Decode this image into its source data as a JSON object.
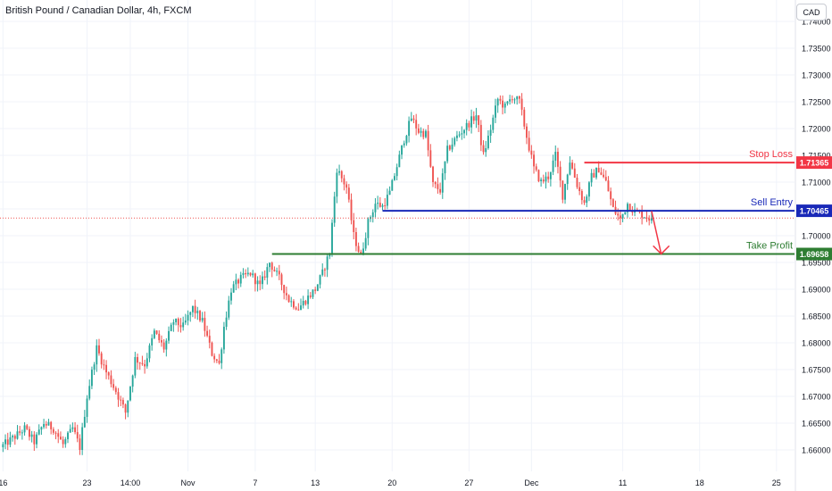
{
  "header": {
    "title": "British Pound / Canadian Dollar, 4h, FXCM"
  },
  "currency_button": "CAD",
  "colors": {
    "up": "#26a69a",
    "down": "#ef5350",
    "stop_loss": "#f23645",
    "sell_entry": "#1929b8",
    "take_profit": "#2e7d32",
    "current_price": "#ef5350",
    "axis_text": "#131722"
  },
  "chart_data": {
    "type": "candlestick",
    "title": "British Pound / Canadian Dollar, 4h, FXCM",
    "ylim": [
      1.656,
      1.744
    ],
    "y_ticks": [
      "1.74000",
      "1.73500",
      "1.73000",
      "1.72500",
      "1.72000",
      "1.71500",
      "1.71000",
      "1.70500",
      "1.70000",
      "1.69500",
      "1.69000",
      "1.68500",
      "1.68000",
      "1.67500",
      "1.67000",
      "1.66500",
      "1.66000"
    ],
    "x_ticks": [
      "16",
      "23",
      "14:00",
      "Nov",
      "7",
      "13",
      "20",
      "27",
      "Dec",
      "11",
      "18",
      "25"
    ],
    "x_tick_index": [
      0,
      35,
      53,
      77,
      105,
      130,
      162,
      194,
      220,
      258,
      290,
      322
    ],
    "levels": [
      {
        "id": "stop_loss",
        "label": "Stop Loss",
        "price": 1.71365,
        "tag": "1.71365",
        "start_index": 242
      },
      {
        "id": "sell_entry",
        "label": "Sell Entry",
        "price": 1.70465,
        "tag": "1.70465",
        "start_index": 158
      },
      {
        "id": "take_profit",
        "label": "Take Profit",
        "price": 1.69658,
        "tag": "1.69658",
        "start_index": 112
      }
    ],
    "current_price": 1.7033,
    "projection": {
      "from_index": 270,
      "from_price": 1.7046,
      "to_index": 274,
      "to_price": 1.6966
    },
    "anchors": [
      [
        0,
        1.6605
      ],
      [
        6,
        1.6625
      ],
      [
        10,
        1.664
      ],
      [
        14,
        1.6615
      ],
      [
        18,
        1.665
      ],
      [
        22,
        1.664
      ],
      [
        26,
        1.661
      ],
      [
        30,
        1.664
      ],
      [
        33,
        1.6605
      ],
      [
        36,
        1.67
      ],
      [
        40,
        1.679
      ],
      [
        44,
        1.6745
      ],
      [
        48,
        1.671
      ],
      [
        52,
        1.667
      ],
      [
        56,
        1.677
      ],
      [
        60,
        1.676
      ],
      [
        64,
        1.682
      ],
      [
        68,
        1.679
      ],
      [
        72,
        1.684
      ],
      [
        76,
        1.683
      ],
      [
        80,
        1.6865
      ],
      [
        84,
        1.684
      ],
      [
        88,
        1.678
      ],
      [
        91,
        1.676
      ],
      [
        93,
        1.683
      ],
      [
        96,
        1.69
      ],
      [
        100,
        1.692
      ],
      [
        104,
        1.693
      ],
      [
        108,
        1.6905
      ],
      [
        112,
        1.695
      ],
      [
        116,
        1.692
      ],
      [
        120,
        1.688
      ],
      [
        124,
        1.6865
      ],
      [
        128,
        1.6885
      ],
      [
        131,
        1.69
      ],
      [
        134,
        1.693
      ],
      [
        137,
        1.697
      ],
      [
        140,
        1.7125
      ],
      [
        144,
        1.709
      ],
      [
        147,
        1.7
      ],
      [
        150,
        1.696
      ],
      [
        153,
        1.7025
      ],
      [
        156,
        1.706
      ],
      [
        159,
        1.7055
      ],
      [
        162,
        1.708
      ],
      [
        165,
        1.713
      ],
      [
        168,
        1.718
      ],
      [
        171,
        1.722
      ],
      [
        174,
        1.7195
      ],
      [
        177,
        1.719
      ],
      [
        180,
        1.7095
      ],
      [
        183,
        1.7085
      ],
      [
        186,
        1.716
      ],
      [
        190,
        1.7185
      ],
      [
        194,
        1.7205
      ],
      [
        198,
        1.7225
      ],
      [
        201,
        1.715
      ],
      [
        204,
        1.72
      ],
      [
        207,
        1.7255
      ],
      [
        210,
        1.724
      ],
      [
        213,
        1.726
      ],
      [
        216,
        1.725
      ],
      [
        219,
        1.7185
      ],
      [
        222,
        1.7125
      ],
      [
        225,
        1.71
      ],
      [
        228,
        1.711
      ],
      [
        231,
        1.715
      ],
      [
        234,
        1.7075
      ],
      [
        237,
        1.714
      ],
      [
        240,
        1.7095
      ],
      [
        243,
        1.706
      ],
      [
        246,
        1.711
      ],
      [
        249,
        1.7125
      ],
      [
        252,
        1.71
      ],
      [
        255,
        1.705
      ],
      [
        258,
        1.703
      ],
      [
        261,
        1.706
      ],
      [
        264,
        1.7045
      ],
      [
        267,
        1.704
      ],
      [
        270,
        1.7033
      ]
    ]
  }
}
